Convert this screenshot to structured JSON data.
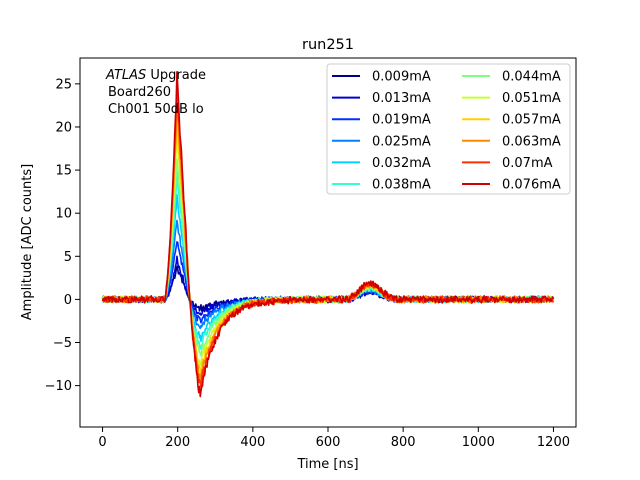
{
  "chart_data": {
    "type": "line",
    "title": "run251",
    "xlabel": "Time [ns]",
    "ylabel": "Amplitude [ADC counts]",
    "xlim": [
      -60,
      1260
    ],
    "ylim": [
      -14.8,
      28
    ],
    "xticks": [
      0,
      200,
      400,
      600,
      800,
      1000,
      1200
    ],
    "yticks": [
      -10,
      -5,
      0,
      5,
      10,
      15,
      20,
      25
    ],
    "grid": false,
    "legend_placement": "top-right",
    "legend_columns": 2,
    "annotation": {
      "atlas": "ATLAS",
      "upgrade": " Upgrade",
      "line2": "Board260",
      "line3": "Ch001 50dB lo"
    },
    "pulse_model": {
      "t0": 165,
      "peak_time": 198,
      "undershoot_time": 262,
      "bump_time": 712,
      "baseline_end": 1200
    },
    "series": [
      {
        "name": "0.009mA",
        "color": "#00008f",
        "peak": 3.6,
        "undershoot": -1.1,
        "bump": 0.8
      },
      {
        "name": "0.013mA",
        "color": "#0000d0",
        "peak": 4.6,
        "undershoot": -1.6,
        "bump": 0.9
      },
      {
        "name": "0.019mA",
        "color": "#0030ff",
        "peak": 7.0,
        "undershoot": -2.5,
        "bump": 1.0
      },
      {
        "name": "0.025mA",
        "color": "#0080ff",
        "peak": 9.3,
        "undershoot": -3.3,
        "bump": 1.1
      },
      {
        "name": "0.032mA",
        "color": "#00d0ff",
        "peak": 12.0,
        "undershoot": -4.4,
        "bump": 1.2
      },
      {
        "name": "0.038mA",
        "color": "#30ffd0",
        "peak": 14.2,
        "undershoot": -5.3,
        "bump": 1.3
      },
      {
        "name": "0.044mA",
        "color": "#80ff80",
        "peak": 16.3,
        "undershoot": -6.2,
        "bump": 1.4
      },
      {
        "name": "0.051mA",
        "color": "#c8ff30",
        "peak": 18.6,
        "undershoot": -7.2,
        "bump": 1.5
      },
      {
        "name": "0.057mA",
        "color": "#ffd000",
        "peak": 20.5,
        "undershoot": -8.1,
        "bump": 1.6
      },
      {
        "name": "0.063mA",
        "color": "#ff8800",
        "peak": 22.4,
        "undershoot": -8.9,
        "bump": 1.7
      },
      {
        "name": "0.07mA",
        "color": "#ff3000",
        "peak": 24.2,
        "undershoot": -9.8,
        "bump": 1.8
      },
      {
        "name": "0.076mA",
        "color": "#d00000",
        "peak": 25.8,
        "undershoot": -10.6,
        "bump": 1.9
      }
    ]
  }
}
